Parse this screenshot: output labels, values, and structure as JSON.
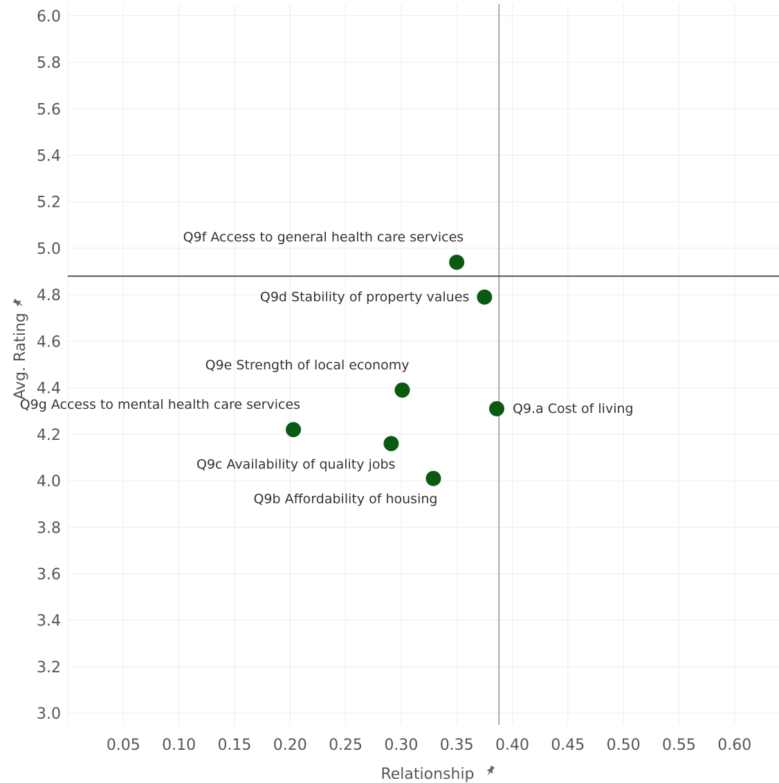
{
  "chart_data": {
    "type": "scatter",
    "title": "",
    "xlabel": "Relationship",
    "ylabel": "Avg. Rating",
    "xlim": [
      0,
      0.64
    ],
    "ylim": [
      2.95,
      6.05
    ],
    "x_ticks": [
      "0.05",
      "0.10",
      "0.15",
      "0.20",
      "0.25",
      "0.30",
      "0.35",
      "0.40",
      "0.45",
      "0.50",
      "0.55",
      "0.60"
    ],
    "y_ticks": [
      "3.0",
      "3.2",
      "3.4",
      "3.6",
      "3.8",
      "4.0",
      "4.2",
      "4.4",
      "4.6",
      "4.8",
      "5.0",
      "5.2",
      "5.4",
      "5.6",
      "5.8",
      "6.0"
    ],
    "reference_lines": {
      "x": 0.388,
      "y": 4.88
    },
    "grid": true,
    "point_color": "#0a5a12",
    "points": [
      {
        "label": "Q9f Access to general health care services",
        "x": 0.35,
        "y": 4.94,
        "label_pos": "above-left"
      },
      {
        "label": "Q9d Stability of property values",
        "x": 0.375,
        "y": 4.79,
        "label_pos": "left"
      },
      {
        "label": "Q9e Strength of local economy",
        "x": 0.301,
        "y": 4.39,
        "label_pos": "above-left"
      },
      {
        "label": "Q9.a Cost of living",
        "x": 0.386,
        "y": 4.31,
        "label_pos": "right"
      },
      {
        "label": "Q9g Access to mental health care services",
        "x": 0.203,
        "y": 4.22,
        "label_pos": "above-left"
      },
      {
        "label": "Q9c Availability of quality jobs",
        "x": 0.291,
        "y": 4.16,
        "label_pos": "below-left"
      },
      {
        "label": "Q9b Affordability of housing",
        "x": 0.329,
        "y": 4.01,
        "label_pos": "below-left"
      }
    ]
  }
}
